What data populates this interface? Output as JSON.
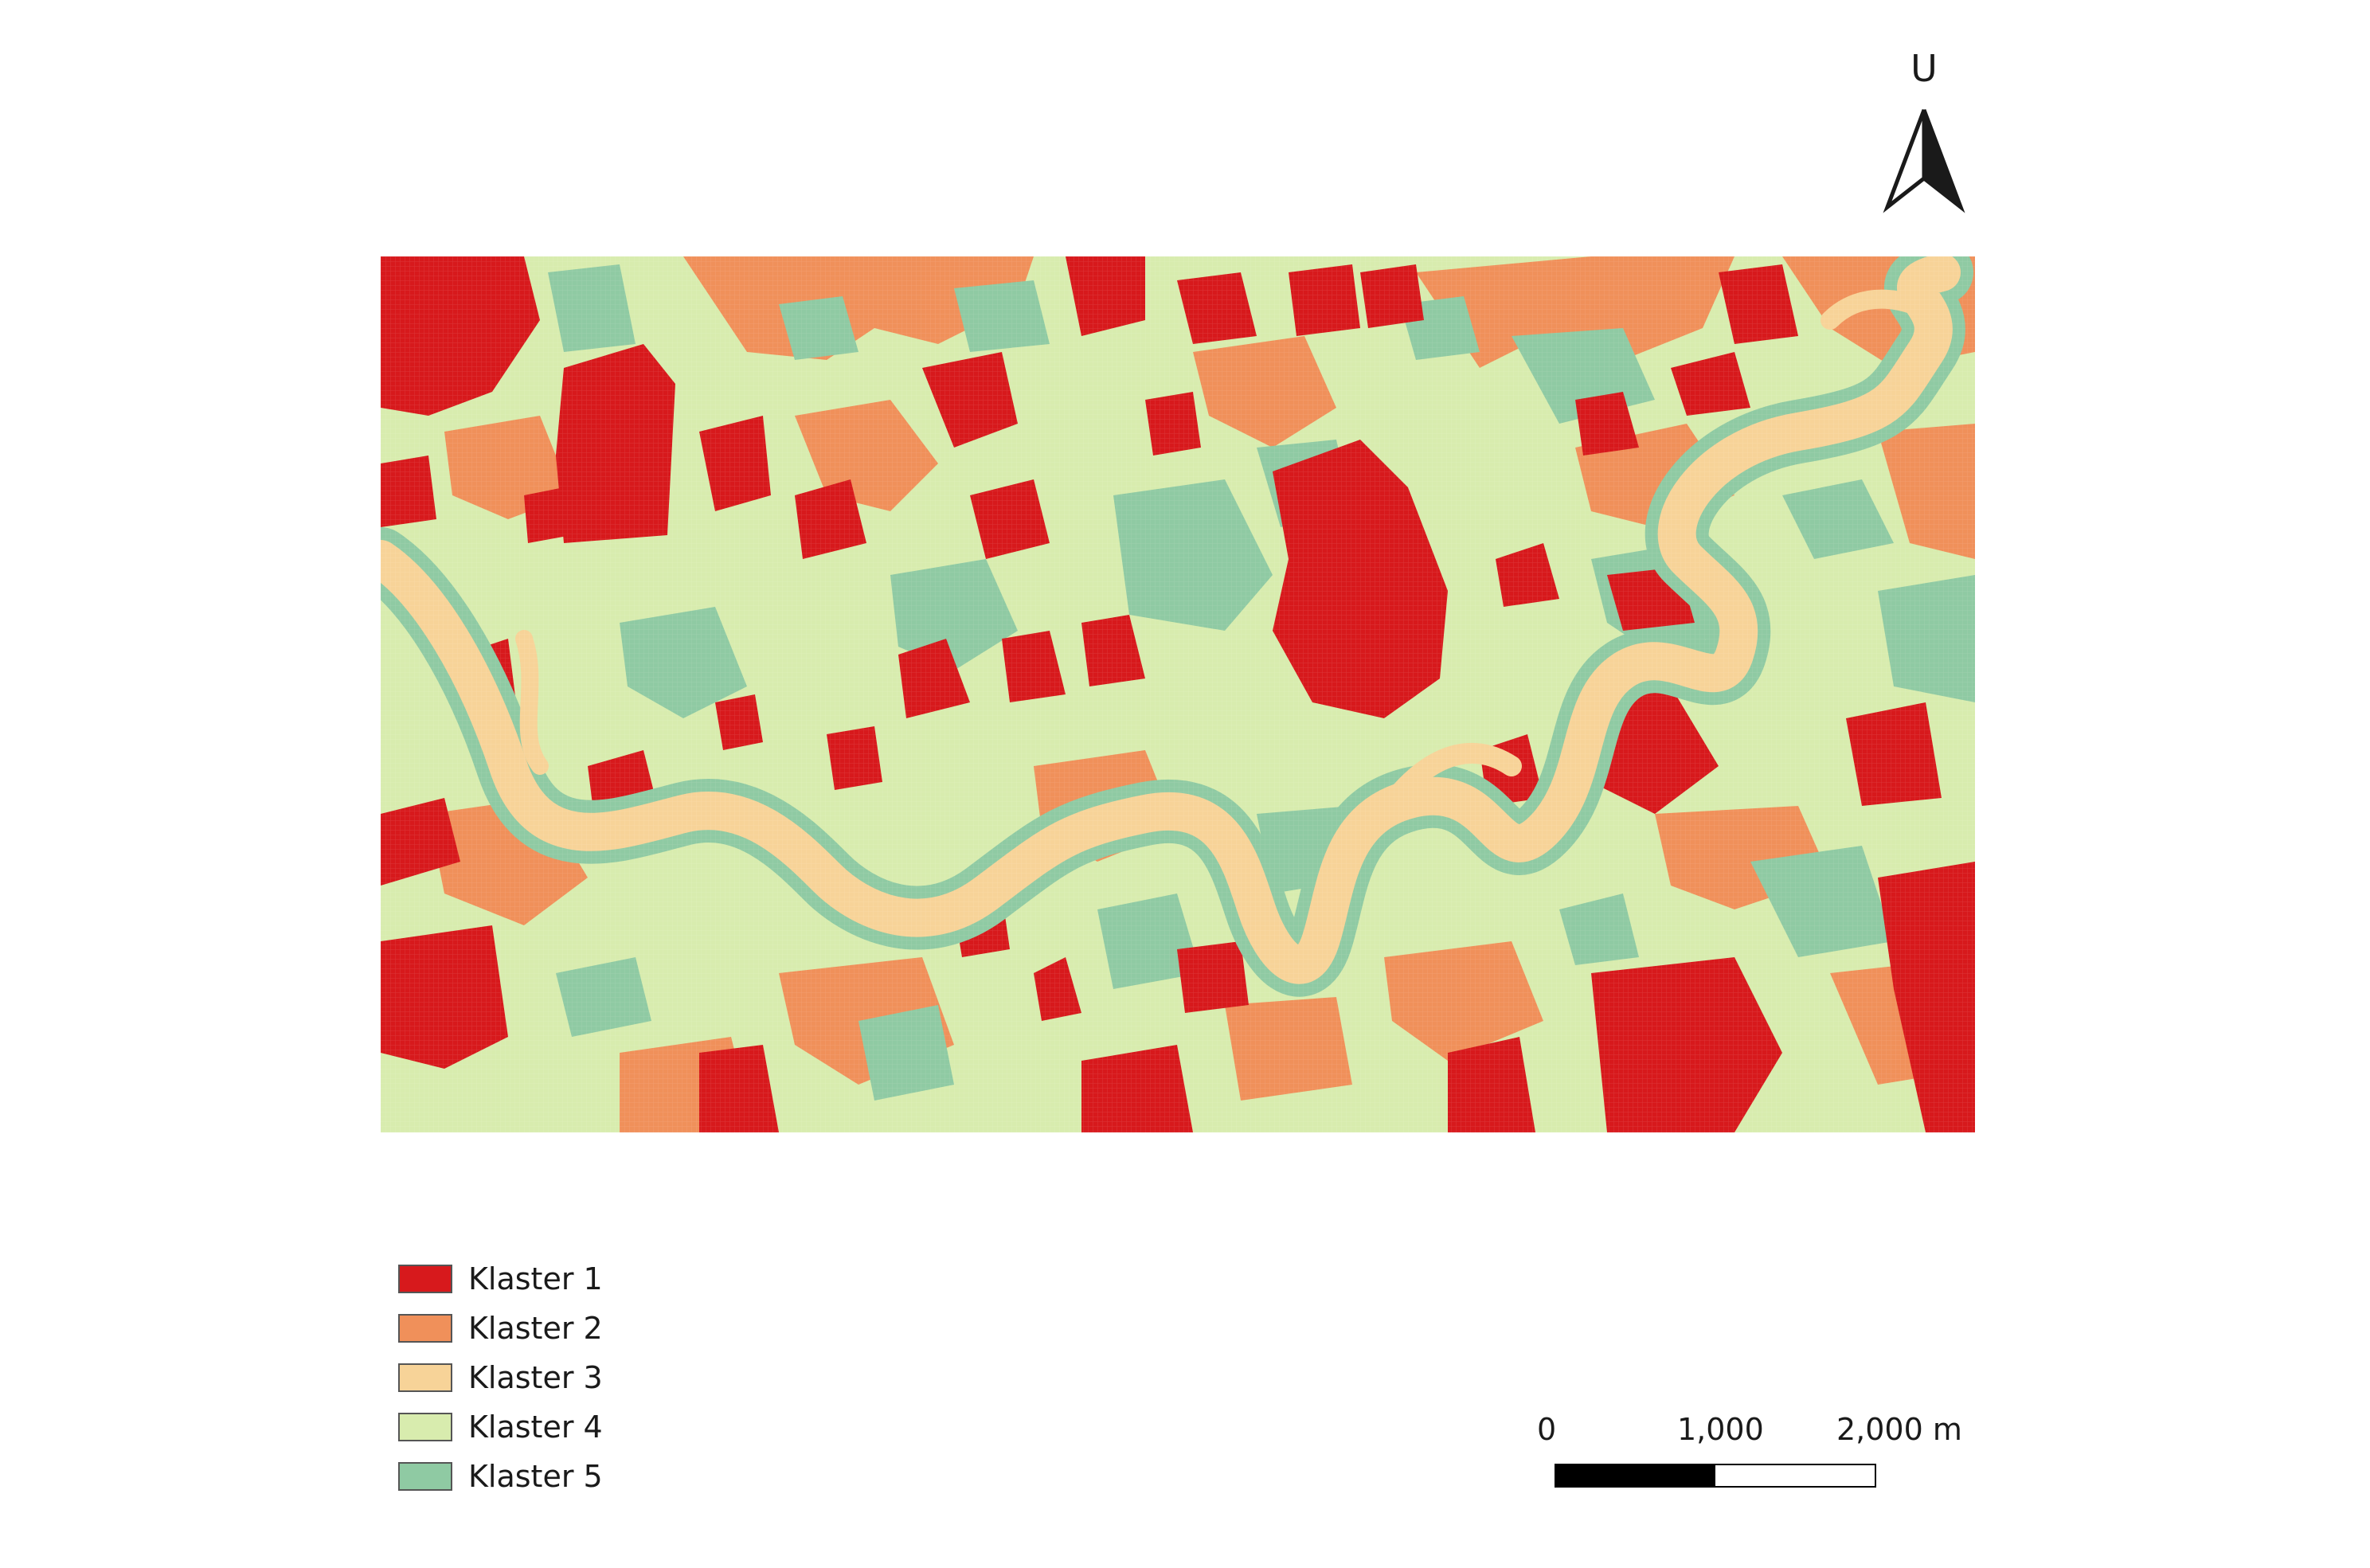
{
  "map": {
    "north_label": "U",
    "classes": [
      {
        "label": "Klaster 1",
        "color": "#d7191c"
      },
      {
        "label": "Klaster 2",
        "color": "#f0905a"
      },
      {
        "label": "Klaster 3",
        "color": "#f7d398"
      },
      {
        "label": "Klaster 4",
        "color": "#d8ecae"
      },
      {
        "label": "Klaster 5",
        "color": "#8fcaa3"
      }
    ],
    "scale": {
      "labels": [
        "0",
        "1,000",
        "2,000 m"
      ],
      "segment_colors": [
        "#000000",
        "#ffffff"
      ]
    }
  }
}
